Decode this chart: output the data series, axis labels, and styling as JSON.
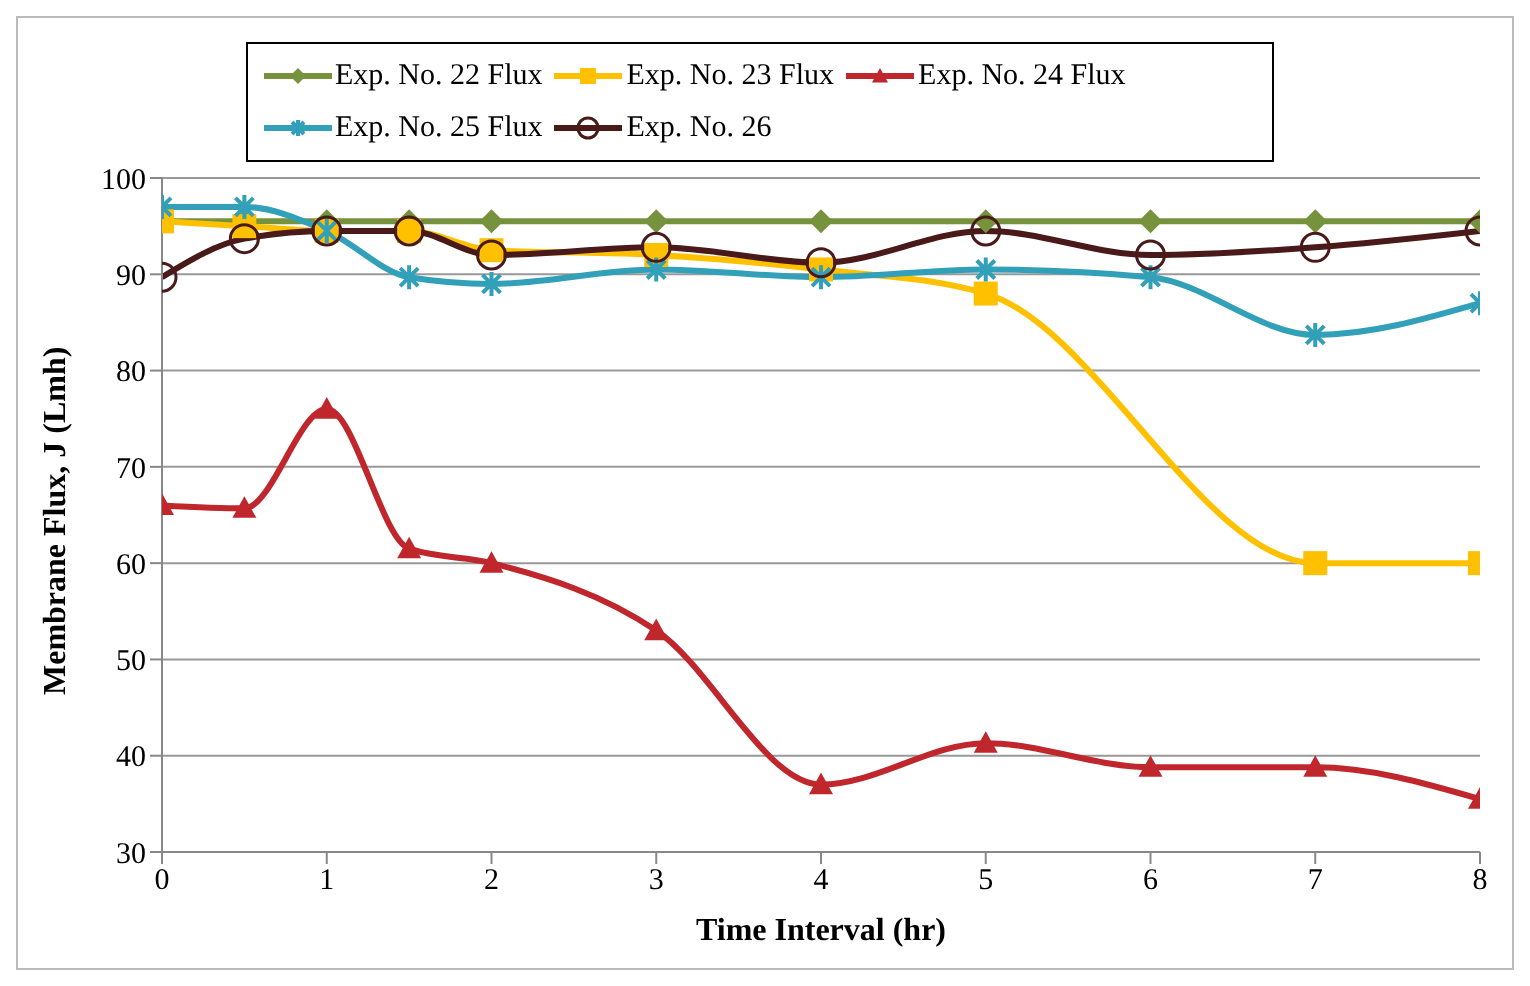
{
  "chart_data": {
    "type": "line",
    "xlabel": "Time Interval (hr)",
    "ylabel": "Membrane Flux, J (Lmh)",
    "x": [
      0,
      0.5,
      1,
      1.5,
      2,
      3,
      4,
      5,
      6,
      7,
      8
    ],
    "xlim": [
      0,
      8
    ],
    "xticks": [
      0,
      1,
      2,
      3,
      4,
      5,
      6,
      7,
      8
    ],
    "ylim": [
      30,
      100
    ],
    "yticks": [
      30,
      40,
      50,
      60,
      70,
      80,
      90,
      100
    ],
    "grid": "y",
    "legend": "top",
    "series": [
      {
        "name": "Exp. No. 22 Flux",
        "color": "#76923c",
        "marker": "diamond",
        "values": [
          95.5,
          95.5,
          95.5,
          95.5,
          95.5,
          95.5,
          95.5,
          95.5,
          95.5,
          95.5,
          95.5
        ]
      },
      {
        "name": "Exp. No. 23 Flux",
        "color": "#ffc000",
        "marker": "square",
        "values": [
          95.5,
          95,
          94.5,
          94.5,
          92.5,
          92,
          90.5,
          88,
          null,
          60,
          60
        ]
      },
      {
        "name": "Exp. No. 24 Flux",
        "color": "#c0272d",
        "marker": "triangle",
        "values": [
          66,
          65.7,
          76,
          61.5,
          60,
          53,
          37,
          41.3,
          38.8,
          38.8,
          35.5
        ]
      },
      {
        "name": "Exp. No. 25 Flux",
        "color": "#31a0b8",
        "marker": "cross",
        "values": [
          97,
          97,
          94.5,
          89.7,
          89,
          90.5,
          89.7,
          90.5,
          89.7,
          83.7,
          87
        ]
      },
      {
        "name": "Exp. No. 26",
        "color": "#4a1a1a",
        "marker": "circle",
        "values": [
          89.7,
          93.7,
          94.5,
          94.5,
          92,
          92.8,
          91.2,
          94.5,
          92,
          92.8,
          94.5
        ]
      }
    ]
  }
}
